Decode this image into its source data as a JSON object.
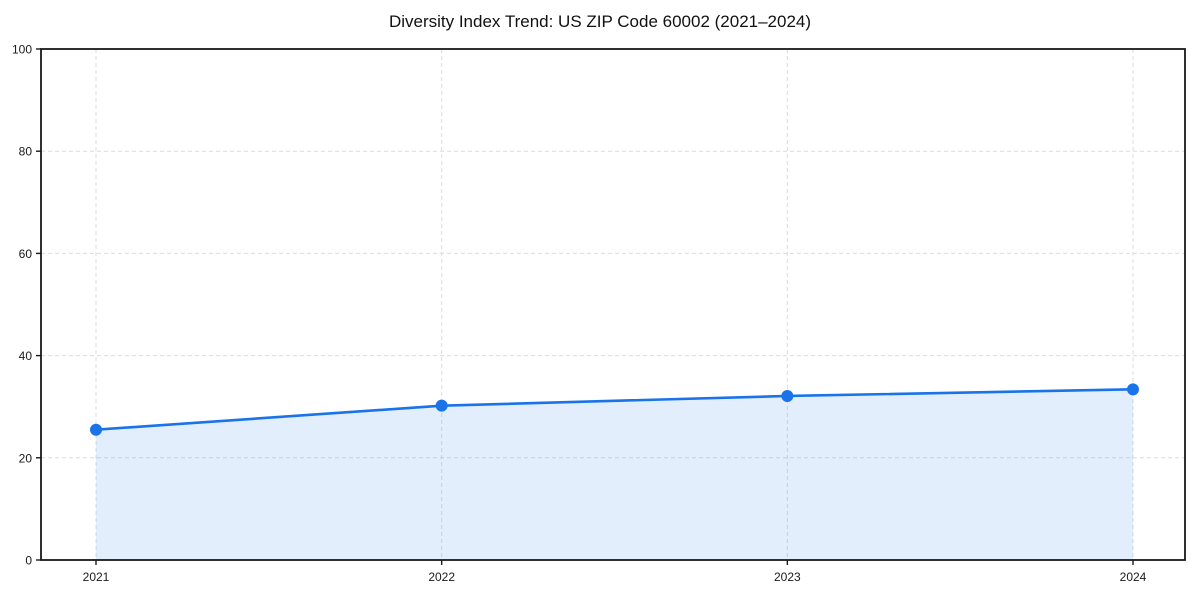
{
  "chart_data": {
    "type": "area",
    "title": "Diversity Index Trend: US ZIP Code 60002 (2021–2024)",
    "categories": [
      "2021",
      "2022",
      "2023",
      "2024"
    ],
    "values": [
      25.5,
      30.2,
      32.1,
      33.4
    ],
    "series_name": "Diversity Index",
    "xlabel": "",
    "ylabel": "",
    "ylim": [
      0,
      100
    ],
    "yticks": [
      0,
      20,
      40,
      60,
      80,
      100
    ],
    "grid": true,
    "grid_style": "dashed",
    "legend": "none",
    "colors": {
      "line": "#1a73e8",
      "marker": "#1a73e8",
      "fill": "rgba(26,115,232,0.12)",
      "grid": "#dcdcdc",
      "axis": "#1a1a1a",
      "text": "#1a1a1a",
      "background": "#ffffff"
    }
  }
}
